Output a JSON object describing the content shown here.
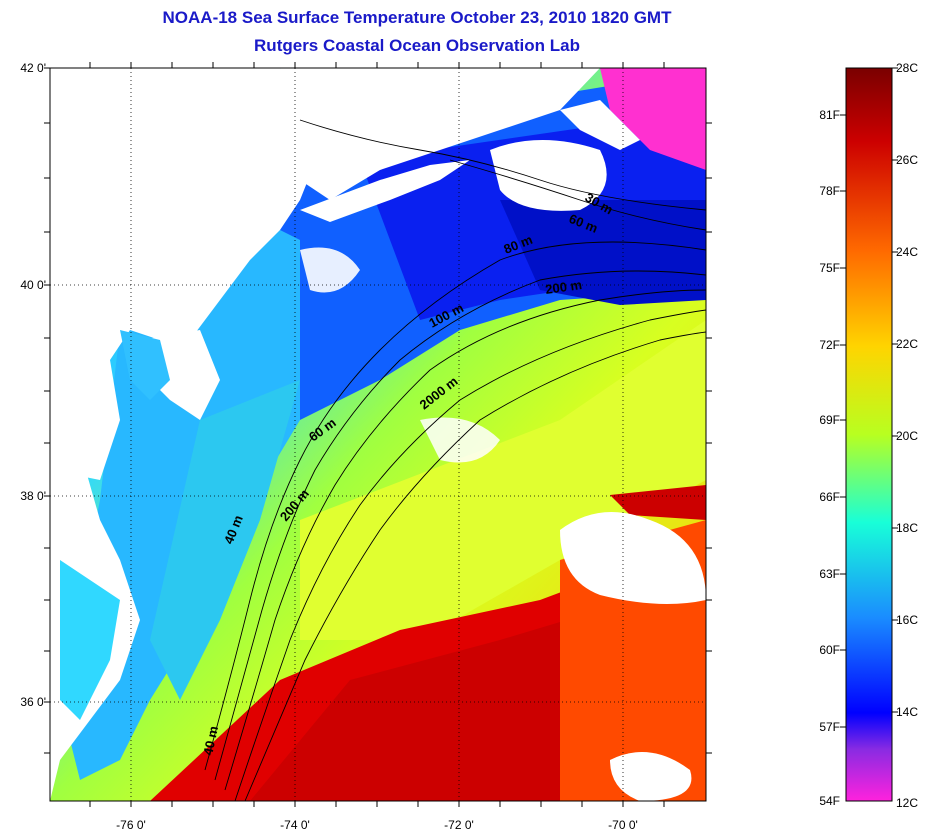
{
  "header": {
    "title": "NOAA-18 Sea Surface Temperature October 23, 2010 1820 GMT",
    "subtitle": "Rutgers Coastal Ocean Observation Lab"
  },
  "map": {
    "lat_labels": [
      "42 0'",
      "40 0'",
      "38 0'",
      "36 0'"
    ],
    "lon_labels": [
      "-76 0'",
      "-74 0'",
      "-72 0'",
      "-70 0'"
    ],
    "depth_contours": [
      "30 m",
      "60 m",
      "80 m",
      "200 m",
      "100 m",
      "2000 m",
      "60 m",
      "200 m",
      "40 m",
      "40 m"
    ]
  },
  "colorbar": {
    "fahrenheit_labels": [
      "81F",
      "78F",
      "75F",
      "72F",
      "69F",
      "66F",
      "63F",
      "60F",
      "57F",
      "54F"
    ],
    "celsius_labels": [
      "28C",
      "26C",
      "24C",
      "22C",
      "20C",
      "18C",
      "16C",
      "14C",
      "12C"
    ],
    "colors": [
      "#8b0000",
      "#e00000",
      "#ff6a00",
      "#ffd400",
      "#d8ff00",
      "#7cff30",
      "#18ffd8",
      "#1a8cff",
      "#0000ff",
      "#8a2be2",
      "#ff22dd"
    ]
  }
}
